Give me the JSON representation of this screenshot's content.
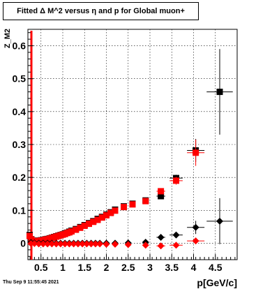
{
  "title": "Fitted Δ M^2 versus η and p for Global muon+",
  "timestamp": "Thu Sep  9 11:55:45 2021",
  "colors": {
    "black_series": "#000000",
    "red_series": "#ff0000",
    "grid": "#000000"
  },
  "chart_data": {
    "type": "scatter",
    "xlabel": "p[GeV/c]",
    "ylabel": "Z_M2",
    "xlim": [
      0.2,
      5.0
    ],
    "ylim": [
      -0.05,
      0.65
    ],
    "grid": true,
    "x_ticks": [
      0.5,
      1,
      1.5,
      2,
      2.5,
      3,
      3.5,
      4,
      4.5
    ],
    "x_tick_labels": [
      "0.5",
      "1",
      "1.5",
      "2",
      "2.5",
      "3",
      "3.5",
      "4",
      "4.5"
    ],
    "y_ticks": [
      0,
      0.1,
      0.2,
      0.3,
      0.4,
      0.5,
      0.6
    ],
    "y_tick_labels": [
      "0",
      "0.1",
      "0.2",
      "0.3",
      "0.4",
      "0.5",
      "0.6"
    ],
    "series": [
      {
        "marker": "square",
        "color": "#000000",
        "points": [
          {
            "x": 0.24,
            "y": 0.025
          },
          {
            "x": 0.28,
            "y": 0.012
          },
          {
            "x": 0.32,
            "y": 0.008
          },
          {
            "x": 0.36,
            "y": 0.007
          },
          {
            "x": 0.4,
            "y": 0.007
          },
          {
            "x": 0.45,
            "y": 0.008
          },
          {
            "x": 0.5,
            "y": 0.009
          },
          {
            "x": 0.55,
            "y": 0.01
          },
          {
            "x": 0.6,
            "y": 0.012
          },
          {
            "x": 0.65,
            "y": 0.013
          },
          {
            "x": 0.7,
            "y": 0.015
          },
          {
            "x": 0.75,
            "y": 0.017
          },
          {
            "x": 0.8,
            "y": 0.019
          },
          {
            "x": 0.85,
            "y": 0.021
          },
          {
            "x": 0.9,
            "y": 0.023
          },
          {
            "x": 0.95,
            "y": 0.025
          },
          {
            "x": 1.0,
            "y": 0.027
          },
          {
            "x": 1.05,
            "y": 0.03
          },
          {
            "x": 1.1,
            "y": 0.032
          },
          {
            "x": 1.15,
            "y": 0.035
          },
          {
            "x": 1.2,
            "y": 0.038
          },
          {
            "x": 1.3,
            "y": 0.043
          },
          {
            "x": 1.4,
            "y": 0.049
          },
          {
            "x": 1.5,
            "y": 0.055
          },
          {
            "x": 1.6,
            "y": 0.061
          },
          {
            "x": 1.7,
            "y": 0.067
          },
          {
            "x": 1.8,
            "y": 0.074
          },
          {
            "x": 1.9,
            "y": 0.08
          },
          {
            "x": 2.0,
            "y": 0.087
          },
          {
            "x": 2.1,
            "y": 0.094
          },
          {
            "x": 2.2,
            "y": 0.102
          },
          {
            "x": 2.4,
            "y": 0.112
          },
          {
            "x": 2.6,
            "y": 0.12
          },
          {
            "x": 2.9,
            "y": 0.13
          },
          {
            "x": 3.25,
            "y": 0.143,
            "xerr": 0.1,
            "yerr": 0.008
          },
          {
            "x": 3.6,
            "y": 0.198,
            "xerr": 0.15,
            "yerr": 0.01
          },
          {
            "x": 4.05,
            "y": 0.282,
            "xerr": 0.2,
            "yerr": 0.035
          },
          {
            "x": 4.6,
            "y": 0.46,
            "xerr": 0.3,
            "yerr": 0.13
          }
        ]
      },
      {
        "marker": "square",
        "color": "#ff0000",
        "points": [
          {
            "x": 0.24,
            "y": 0.022
          },
          {
            "x": 0.28,
            "y": 0.011
          },
          {
            "x": 0.32,
            "y": 0.007
          },
          {
            "x": 0.36,
            "y": 0.006
          },
          {
            "x": 0.4,
            "y": 0.006
          },
          {
            "x": 0.45,
            "y": 0.007
          },
          {
            "x": 0.5,
            "y": 0.008
          },
          {
            "x": 0.55,
            "y": 0.009
          },
          {
            "x": 0.6,
            "y": 0.011
          },
          {
            "x": 0.65,
            "y": 0.012
          },
          {
            "x": 0.7,
            "y": 0.014
          },
          {
            "x": 0.75,
            "y": 0.016
          },
          {
            "x": 0.8,
            "y": 0.018
          },
          {
            "x": 0.85,
            "y": 0.02
          },
          {
            "x": 0.9,
            "y": 0.022
          },
          {
            "x": 0.95,
            "y": 0.024
          },
          {
            "x": 1.0,
            "y": 0.026
          },
          {
            "x": 1.05,
            "y": 0.028
          },
          {
            "x": 1.1,
            "y": 0.031
          },
          {
            "x": 1.15,
            "y": 0.033
          },
          {
            "x": 1.2,
            "y": 0.036
          },
          {
            "x": 1.3,
            "y": 0.041
          },
          {
            "x": 1.4,
            "y": 0.047
          },
          {
            "x": 1.5,
            "y": 0.053
          },
          {
            "x": 1.6,
            "y": 0.059
          },
          {
            "x": 1.7,
            "y": 0.065
          },
          {
            "x": 1.8,
            "y": 0.071
          },
          {
            "x": 1.9,
            "y": 0.078
          },
          {
            "x": 2.0,
            "y": 0.085
          },
          {
            "x": 2.1,
            "y": 0.092
          },
          {
            "x": 2.2,
            "y": 0.099
          },
          {
            "x": 2.4,
            "y": 0.11
          },
          {
            "x": 2.6,
            "y": 0.118
          },
          {
            "x": 2.9,
            "y": 0.128
          },
          {
            "x": 3.25,
            "y": 0.158,
            "xerr": 0.1,
            "yerr": 0.008
          },
          {
            "x": 3.6,
            "y": 0.19,
            "xerr": 0.15,
            "yerr": 0.012
          },
          {
            "x": 4.05,
            "y": 0.275,
            "xerr": 0.2,
            "yerr": 0.04
          }
        ]
      },
      {
        "marker": "diamond",
        "color": "#000000",
        "points": [
          {
            "x": 0.27,
            "y": 0.002
          },
          {
            "x": 0.35,
            "y": 0.001
          },
          {
            "x": 0.45,
            "y": 0.0
          },
          {
            "x": 0.55,
            "y": 0.0
          },
          {
            "x": 0.65,
            "y": 0.0
          },
          {
            "x": 0.75,
            "y": 0.0
          },
          {
            "x": 0.85,
            "y": 0.0
          },
          {
            "x": 0.95,
            "y": 0.0
          },
          {
            "x": 1.05,
            "y": 0.0
          },
          {
            "x": 1.15,
            "y": 0.0
          },
          {
            "x": 1.25,
            "y": 0.0
          },
          {
            "x": 1.35,
            "y": 0.0
          },
          {
            "x": 1.45,
            "y": 0.0
          },
          {
            "x": 1.55,
            "y": 0.0
          },
          {
            "x": 1.65,
            "y": 0.0
          },
          {
            "x": 1.75,
            "y": 0.0
          },
          {
            "x": 1.85,
            "y": 0.0
          },
          {
            "x": 2.0,
            "y": 0.0
          },
          {
            "x": 2.2,
            "y": 0.0
          },
          {
            "x": 2.5,
            "y": 0.001
          },
          {
            "x": 2.9,
            "y": 0.003
          },
          {
            "x": 3.25,
            "y": 0.018,
            "xerr": 0.1
          },
          {
            "x": 3.6,
            "y": 0.025,
            "xerr": 0.15
          },
          {
            "x": 4.05,
            "y": 0.048,
            "xerr": 0.2,
            "yerr": 0.02
          },
          {
            "x": 4.6,
            "y": 0.067,
            "xerr": 0.3,
            "yerr": 0.07
          }
        ]
      },
      {
        "marker": "diamond",
        "color": "#ff0000",
        "points": [
          {
            "x": 0.27,
            "y": -0.001
          },
          {
            "x": 0.35,
            "y": -0.001
          },
          {
            "x": 0.45,
            "y": -0.002
          },
          {
            "x": 0.55,
            "y": -0.002
          },
          {
            "x": 0.65,
            "y": -0.002
          },
          {
            "x": 0.75,
            "y": -0.002
          },
          {
            "x": 0.85,
            "y": -0.002
          },
          {
            "x": 0.95,
            "y": -0.002
          },
          {
            "x": 1.05,
            "y": -0.002
          },
          {
            "x": 1.15,
            "y": -0.002
          },
          {
            "x": 1.25,
            "y": -0.002
          },
          {
            "x": 1.35,
            "y": -0.002
          },
          {
            "x": 1.45,
            "y": -0.002
          },
          {
            "x": 1.55,
            "y": -0.002
          },
          {
            "x": 1.65,
            "y": -0.002
          },
          {
            "x": 1.75,
            "y": -0.002
          },
          {
            "x": 1.85,
            "y": -0.002
          },
          {
            "x": 2.0,
            "y": -0.003
          },
          {
            "x": 2.2,
            "y": -0.003
          },
          {
            "x": 2.5,
            "y": -0.004
          },
          {
            "x": 2.9,
            "y": -0.006
          },
          {
            "x": 3.25,
            "y": -0.008,
            "xerr": 0.1
          },
          {
            "x": 3.6,
            "y": -0.006,
            "xerr": 0.15
          },
          {
            "x": 4.05,
            "y": 0.007,
            "xerr": 0.2,
            "yerr": 0.01
          }
        ]
      }
    ]
  }
}
